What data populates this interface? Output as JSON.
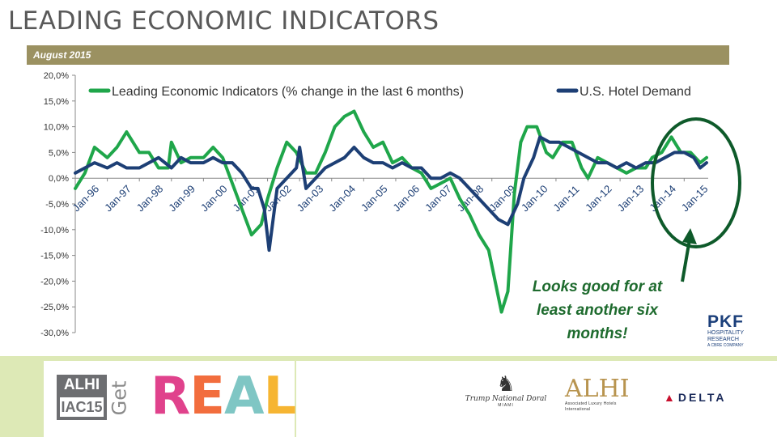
{
  "title": "LEADING ECONOMIC INDICATORS",
  "subtitle": "August 2015",
  "callout": [
    "Looks good for at",
    "least another six",
    "months!"
  ],
  "colors": {
    "lei": "#1fa64a",
    "hotel": "#1d3f75",
    "highlight": "#0e5a2a",
    "bar": "#9b9161",
    "footer": "#dde9b6"
  },
  "logos": {
    "pkf": {
      "big": "PKF",
      "line1": "HOSPITALITY",
      "line2": "RESEARCH",
      "line3": "A CBRE COMPANY"
    },
    "alhi_badge": {
      "top": "ALHI",
      "bottom": "IAC15"
    },
    "get": "Get",
    "real": [
      "R",
      "E",
      "A",
      "L"
    ],
    "real_colors": [
      "#e0428c",
      "#f26d3d",
      "#7fc6c4",
      "#f6b532"
    ],
    "trump": {
      "name": "Trump National Doral",
      "city": "MIAMI"
    },
    "alhi": {
      "big": "ALHI",
      "sm1": "Associated Luxury Hotels",
      "sm2": "International"
    },
    "delta": "DELTA"
  },
  "chart_data": {
    "type": "line",
    "x_tick_labels": [
      "Jan-96",
      "Jan-97",
      "Jan-98",
      "Jan-99",
      "Jan-00",
      "Jan-01",
      "Jan-02",
      "Jan-03",
      "Jan-04",
      "Jan-05",
      "Jan-06",
      "Jan-07",
      "Jan-08",
      "Jan-09",
      "Jan-10",
      "Jan-11",
      "Jan-12",
      "Jan-13",
      "Jan-14",
      "Jan-15"
    ],
    "y_ticks": [
      "20,0%",
      "15,0%",
      "10,0%",
      "5,0%",
      "0,0%",
      "-5,0%",
      "-10,0%",
      "-15,0%",
      "-20,0%",
      "-25,0%",
      "-30,0%"
    ],
    "ylim": [
      -30,
      20
    ],
    "xlim": [
      1996.0,
      2015.75
    ],
    "grid": false,
    "legend_position": "top",
    "series": [
      {
        "name": "Leading Economic Indicators (% change in the last 6 months)",
        "color_key": "lei",
        "points": [
          [
            1996.0,
            -2
          ],
          [
            1996.3,
            1
          ],
          [
            1996.6,
            6
          ],
          [
            1997.0,
            4
          ],
          [
            1997.3,
            6
          ],
          [
            1997.6,
            9
          ],
          [
            1998.0,
            5
          ],
          [
            1998.3,
            5
          ],
          [
            1998.6,
            2
          ],
          [
            1998.9,
            2
          ],
          [
            1999.0,
            7
          ],
          [
            1999.3,
            3
          ],
          [
            1999.6,
            4
          ],
          [
            2000.0,
            4
          ],
          [
            2000.3,
            6
          ],
          [
            2000.6,
            4
          ],
          [
            2000.9,
            -1
          ],
          [
            2001.2,
            -6
          ],
          [
            2001.5,
            -11
          ],
          [
            2001.8,
            -9
          ],
          [
            2002.0,
            -4
          ],
          [
            2002.3,
            2
          ],
          [
            2002.6,
            7
          ],
          [
            2002.9,
            5
          ],
          [
            2003.2,
            1
          ],
          [
            2003.5,
            1
          ],
          [
            2003.8,
            5
          ],
          [
            2004.1,
            10
          ],
          [
            2004.4,
            12
          ],
          [
            2004.7,
            13
          ],
          [
            2005.0,
            9
          ],
          [
            2005.3,
            6
          ],
          [
            2005.6,
            7
          ],
          [
            2005.9,
            3
          ],
          [
            2006.2,
            4
          ],
          [
            2006.5,
            2
          ],
          [
            2006.8,
            1
          ],
          [
            2007.1,
            -2
          ],
          [
            2007.4,
            -1
          ],
          [
            2007.7,
            0
          ],
          [
            2008.0,
            -4
          ],
          [
            2008.3,
            -7
          ],
          [
            2008.6,
            -11
          ],
          [
            2008.9,
            -14
          ],
          [
            2009.1,
            -20
          ],
          [
            2009.3,
            -26
          ],
          [
            2009.5,
            -22
          ],
          [
            2009.7,
            -3
          ],
          [
            2009.9,
            7
          ],
          [
            2010.1,
            10
          ],
          [
            2010.4,
            10
          ],
          [
            2010.7,
            5
          ],
          [
            2010.9,
            4
          ],
          [
            2011.2,
            7
          ],
          [
            2011.5,
            7
          ],
          [
            2011.8,
            2
          ],
          [
            2012.0,
            0
          ],
          [
            2012.3,
            4
          ],
          [
            2012.6,
            3
          ],
          [
            2012.9,
            2
          ],
          [
            2013.2,
            1
          ],
          [
            2013.5,
            2
          ],
          [
            2013.8,
            2
          ],
          [
            2014.0,
            4
          ],
          [
            2014.3,
            5
          ],
          [
            2014.6,
            8
          ],
          [
            2014.9,
            5
          ],
          [
            2015.2,
            5
          ],
          [
            2015.5,
            3
          ],
          [
            2015.7,
            4
          ]
        ]
      },
      {
        "name": "U.S. Hotel Demand",
        "color_key": "hotel",
        "points": [
          [
            1996.0,
            1
          ],
          [
            1996.3,
            2
          ],
          [
            1996.6,
            3
          ],
          [
            1997.0,
            2
          ],
          [
            1997.3,
            3
          ],
          [
            1997.6,
            2
          ],
          [
            1998.0,
            2
          ],
          [
            1998.3,
            3
          ],
          [
            1998.6,
            4
          ],
          [
            1999.0,
            2
          ],
          [
            1999.3,
            4
          ],
          [
            1999.6,
            3
          ],
          [
            2000.0,
            3
          ],
          [
            2000.3,
            4
          ],
          [
            2000.6,
            3
          ],
          [
            2000.9,
            3
          ],
          [
            2001.2,
            1
          ],
          [
            2001.5,
            -2
          ],
          [
            2001.7,
            -2
          ],
          [
            2001.9,
            -6
          ],
          [
            2002.05,
            -14
          ],
          [
            2002.3,
            -2
          ],
          [
            2002.6,
            0
          ],
          [
            2002.9,
            2
          ],
          [
            2003.0,
            6
          ],
          [
            2003.2,
            -2
          ],
          [
            2003.5,
            0
          ],
          [
            2003.8,
            2
          ],
          [
            2004.1,
            3
          ],
          [
            2004.4,
            4
          ],
          [
            2004.7,
            6
          ],
          [
            2005.0,
            4
          ],
          [
            2005.3,
            3
          ],
          [
            2005.6,
            3
          ],
          [
            2005.9,
            2
          ],
          [
            2006.2,
            3
          ],
          [
            2006.5,
            2
          ],
          [
            2006.8,
            2
          ],
          [
            2007.1,
            0
          ],
          [
            2007.4,
            0
          ],
          [
            2007.7,
            1
          ],
          [
            2008.0,
            0
          ],
          [
            2008.3,
            -2
          ],
          [
            2008.6,
            -4
          ],
          [
            2008.9,
            -6
          ],
          [
            2009.2,
            -8
          ],
          [
            2009.5,
            -9
          ],
          [
            2009.8,
            -5
          ],
          [
            2010.0,
            0
          ],
          [
            2010.3,
            4
          ],
          [
            2010.5,
            8
          ],
          [
            2010.8,
            7
          ],
          [
            2011.1,
            7
          ],
          [
            2011.4,
            6
          ],
          [
            2011.7,
            5
          ],
          [
            2012.0,
            4
          ],
          [
            2012.3,
            3
          ],
          [
            2012.6,
            3
          ],
          [
            2012.9,
            2
          ],
          [
            2013.2,
            3
          ],
          [
            2013.5,
            2
          ],
          [
            2013.8,
            3
          ],
          [
            2014.1,
            3
          ],
          [
            2014.4,
            4
          ],
          [
            2014.7,
            5
          ],
          [
            2015.0,
            5
          ],
          [
            2015.3,
            4
          ],
          [
            2015.5,
            2
          ],
          [
            2015.7,
            3
          ]
        ]
      }
    ]
  }
}
